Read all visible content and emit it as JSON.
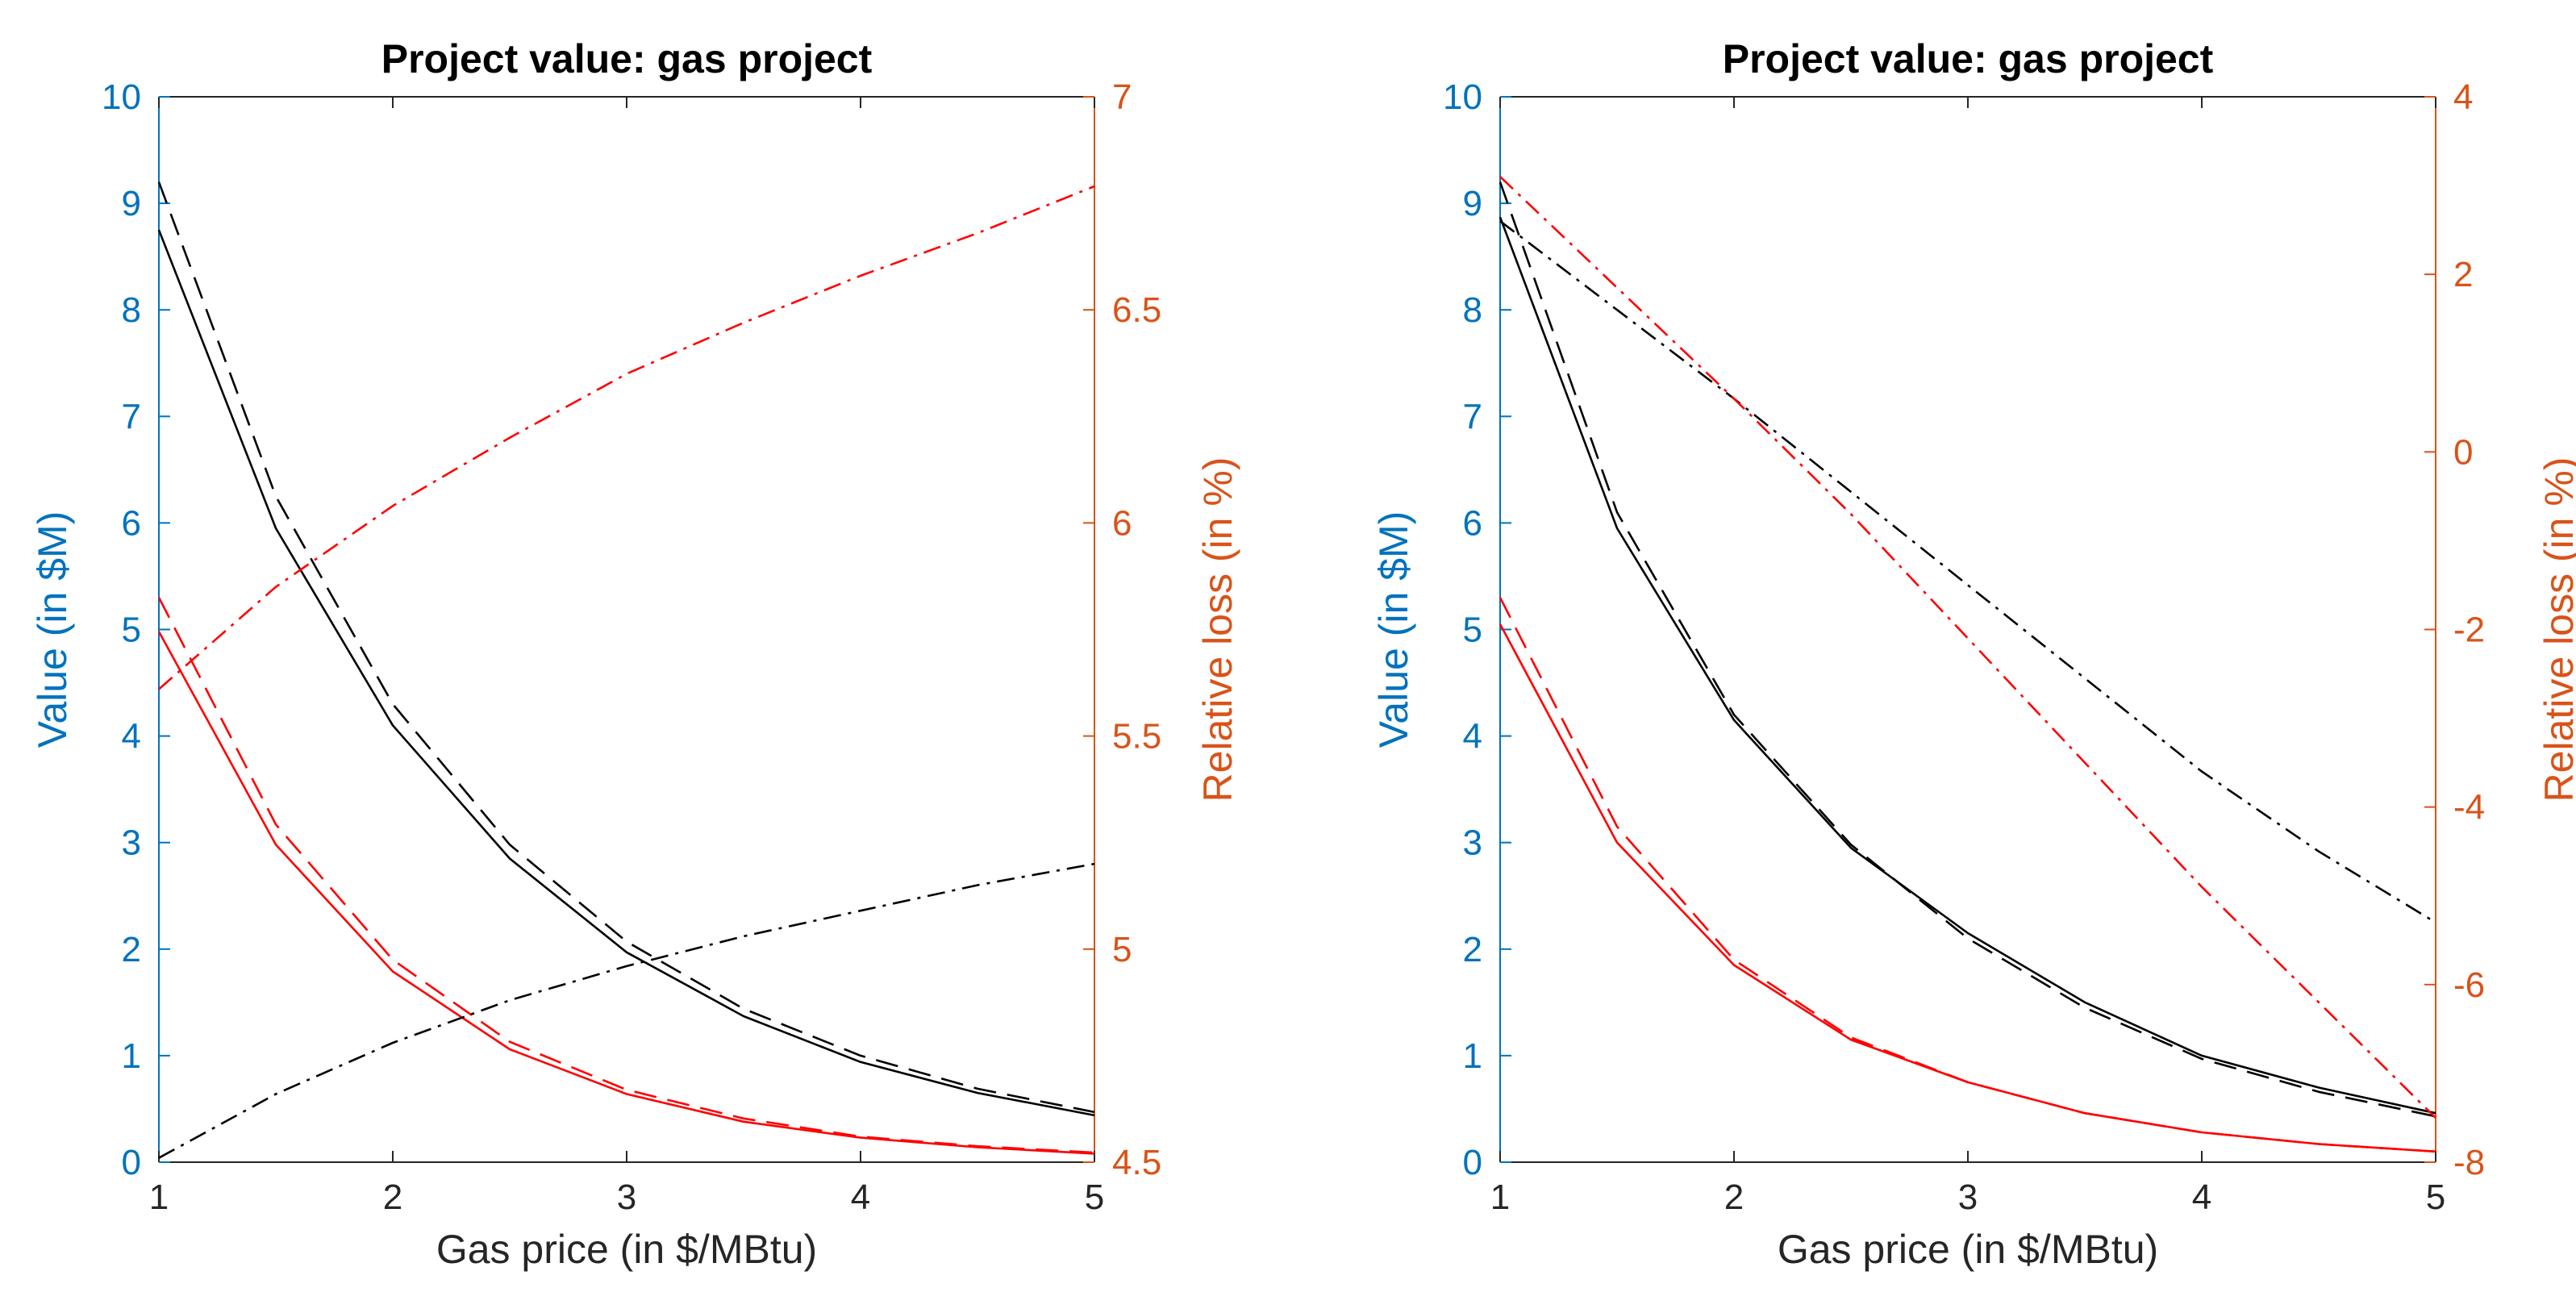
{
  "colors": {
    "left_axis": "#0072BD",
    "right_axis": "#D95319",
    "black_series": "#000000",
    "red_series": "#FF0000",
    "frame": "#262626"
  },
  "chart_data": [
    {
      "type": "line",
      "title": "Project value: gas project",
      "xlabel": "Gas price (in $/MBtu)",
      "ylabel_left": "Value (in $M)",
      "ylabel_right": "Relative loss (in %)",
      "xlim": [
        1,
        5
      ],
      "ylim_left": [
        0,
        10
      ],
      "ylim_right": [
        4.5,
        7
      ],
      "xticks": [
        "1",
        "2",
        "3",
        "4",
        "5"
      ],
      "yticks_left": [
        "0",
        "1",
        "2",
        "3",
        "4",
        "5",
        "6",
        "7",
        "8",
        "9",
        "10"
      ],
      "yticks_right": [
        "4.5",
        "5",
        "5.5",
        "6",
        "6.5",
        "7"
      ],
      "x": [
        1,
        1.5,
        2,
        2.5,
        3,
        3.5,
        4,
        4.5,
        5
      ],
      "series": [
        {
          "name": "black solid",
          "axis": "left",
          "color": "black",
          "dash": "solid",
          "values": [
            8.75,
            5.95,
            4.1,
            2.85,
            1.97,
            1.37,
            0.94,
            0.65,
            0.44
          ]
        },
        {
          "name": "black dashed",
          "axis": "left",
          "color": "black",
          "dash": "dashed",
          "values": [
            9.2,
            6.25,
            4.3,
            2.98,
            2.07,
            1.44,
            1.0,
            0.69,
            0.47
          ]
        },
        {
          "name": "red solid",
          "axis": "left",
          "color": "red",
          "dash": "solid",
          "values": [
            4.98,
            2.98,
            1.79,
            1.06,
            0.64,
            0.38,
            0.23,
            0.14,
            0.08
          ]
        },
        {
          "name": "red dashed",
          "axis": "left",
          "color": "red",
          "dash": "dashed",
          "values": [
            5.3,
            3.17,
            1.9,
            1.13,
            0.68,
            0.41,
            0.24,
            0.15,
            0.09
          ]
        },
        {
          "name": "black dash-dot",
          "axis": "right",
          "color": "black",
          "dash": "dashdot",
          "values": [
            4.51,
            4.66,
            4.78,
            4.88,
            4.96,
            5.03,
            5.09,
            5.15,
            5.2
          ]
        },
        {
          "name": "red dash-dot",
          "axis": "right",
          "color": "red",
          "dash": "dashdot",
          "values": [
            5.61,
            5.85,
            6.04,
            6.2,
            6.35,
            6.47,
            6.58,
            6.68,
            6.79
          ]
        }
      ]
    },
    {
      "type": "line",
      "title": "Project value: gas project",
      "xlabel": "Gas price (in $/MBtu)",
      "ylabel_left": "Value (in $M)",
      "ylabel_right": "Relative loss (in %)",
      "xlim": [
        1,
        5
      ],
      "ylim_left": [
        0,
        10
      ],
      "ylim_right": [
        -8,
        4
      ],
      "xticks": [
        "1",
        "2",
        "3",
        "4",
        "5"
      ],
      "yticks_left": [
        "0",
        "1",
        "2",
        "3",
        "4",
        "5",
        "6",
        "7",
        "8",
        "9",
        "10"
      ],
      "yticks_right": [
        "-8",
        "-6",
        "-4",
        "-2",
        "0",
        "2",
        "4"
      ],
      "x": [
        1,
        1.5,
        2,
        2.5,
        3,
        3.5,
        4,
        4.5,
        5
      ],
      "series": [
        {
          "name": "black solid",
          "axis": "left",
          "color": "black",
          "dash": "solid",
          "values": [
            8.87,
            5.95,
            4.15,
            2.95,
            2.15,
            1.5,
            1.0,
            0.7,
            0.46
          ]
        },
        {
          "name": "black dashed",
          "axis": "left",
          "color": "black",
          "dash": "dashed",
          "values": [
            9.2,
            6.1,
            4.2,
            2.98,
            2.1,
            1.45,
            0.97,
            0.66,
            0.43
          ]
        },
        {
          "name": "red solid",
          "axis": "left",
          "color": "red",
          "dash": "solid",
          "values": [
            5.05,
            3.0,
            1.85,
            1.15,
            0.75,
            0.46,
            0.28,
            0.17,
            0.1
          ]
        },
        {
          "name": "red dashed",
          "axis": "left",
          "color": "red",
          "dash": "dashed",
          "values": [
            5.3,
            3.15,
            1.9,
            1.17,
            0.75,
            0.46,
            0.28,
            0.17,
            0.1
          ]
        },
        {
          "name": "black dash-dot",
          "axis": "right",
          "color": "black",
          "dash": "dashdot",
          "values": [
            2.6,
            1.6,
            0.6,
            -0.45,
            -1.5,
            -2.55,
            -3.6,
            -4.5,
            -5.3
          ]
        },
        {
          "name": "red dash-dot",
          "axis": "right",
          "color": "red",
          "dash": "dashdot",
          "values": [
            3.1,
            1.85,
            0.6,
            -0.7,
            -2.1,
            -3.5,
            -4.9,
            -6.2,
            -7.5
          ]
        }
      ]
    }
  ]
}
